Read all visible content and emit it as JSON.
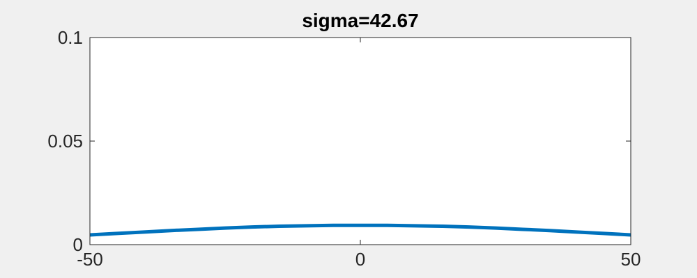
{
  "chart_data": {
    "type": "line",
    "title": "sigma=42.67",
    "xlabel": "",
    "ylabel": "",
    "xlim": [
      -50,
      50
    ],
    "ylim": [
      0,
      0.1
    ],
    "x_ticks": [
      -50,
      0,
      50
    ],
    "x_tick_labels": [
      "-50",
      "0",
      "50"
    ],
    "y_ticks": [
      0,
      0.05,
      0.1
    ],
    "y_tick_labels": [
      "0",
      "0.05",
      "0.1"
    ],
    "grid": false,
    "legend": "none",
    "series": [
      {
        "x": [
          -50,
          -45,
          -40,
          -35,
          -30,
          -25,
          -20,
          -15,
          -10,
          -5,
          0,
          5,
          10,
          15,
          20,
          25,
          30,
          35,
          40,
          45,
          50
        ],
        "y": [
          0.0047,
          0.0054,
          0.0061,
          0.0068,
          0.0074,
          0.008,
          0.0085,
          0.0089,
          0.0091,
          0.0093,
          0.0093,
          0.0093,
          0.0091,
          0.0089,
          0.0085,
          0.008,
          0.0074,
          0.0068,
          0.0061,
          0.0054,
          0.0047
        ],
        "color": "#0072bd"
      }
    ]
  },
  "colors": {
    "figure_background": "#f0f0f0",
    "axes_background": "#ffffff",
    "axis_color": "#262626",
    "line_color": "#0072bd"
  }
}
